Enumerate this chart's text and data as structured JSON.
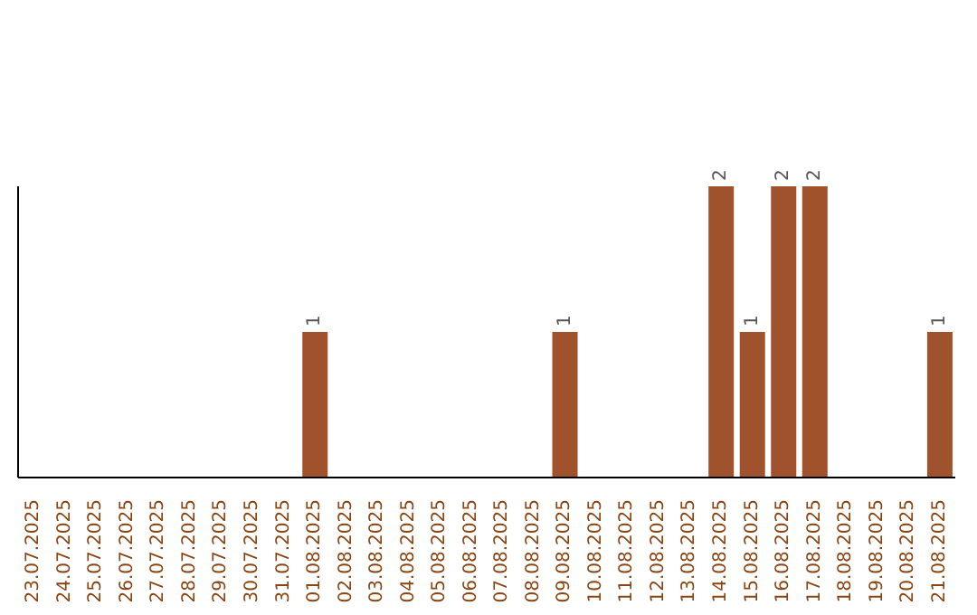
{
  "chart_data": {
    "type": "bar",
    "categories": [
      "23.07.2025",
      "24.07.2025",
      "25.07.2025",
      "26.07.2025",
      "27.07.2025",
      "28.07.2025",
      "29.07.2025",
      "30.07.2025",
      "31.07.2025",
      "01.08.2025",
      "02.08.2025",
      "03.08.2025",
      "04.08.2025",
      "05.08.2025",
      "06.08.2025",
      "07.08.2025",
      "08.08.2025",
      "09.08.2025",
      "10.08.2025",
      "11.08.2025",
      "12.08.2025",
      "13.08.2025",
      "14.08.2025",
      "15.08.2025",
      "16.08.2025",
      "17.08.2025",
      "18.08.2025",
      "19.08.2025",
      "20.08.2025",
      "21.08.2025"
    ],
    "values": [
      0,
      0,
      0,
      0,
      0,
      0,
      0,
      0,
      0,
      1,
      0,
      0,
      0,
      0,
      0,
      0,
      0,
      1,
      0,
      0,
      0,
      0,
      2,
      1,
      2,
      2,
      0,
      0,
      0,
      1
    ],
    "value_labels": [
      null,
      null,
      null,
      null,
      null,
      null,
      null,
      null,
      null,
      "1",
      null,
      null,
      null,
      null,
      null,
      null,
      null,
      "1",
      null,
      null,
      null,
      null,
      "2",
      "1",
      "2",
      "2",
      null,
      null,
      null,
      "1"
    ],
    "color": "#a0522d",
    "tick_labels": "x"
  }
}
